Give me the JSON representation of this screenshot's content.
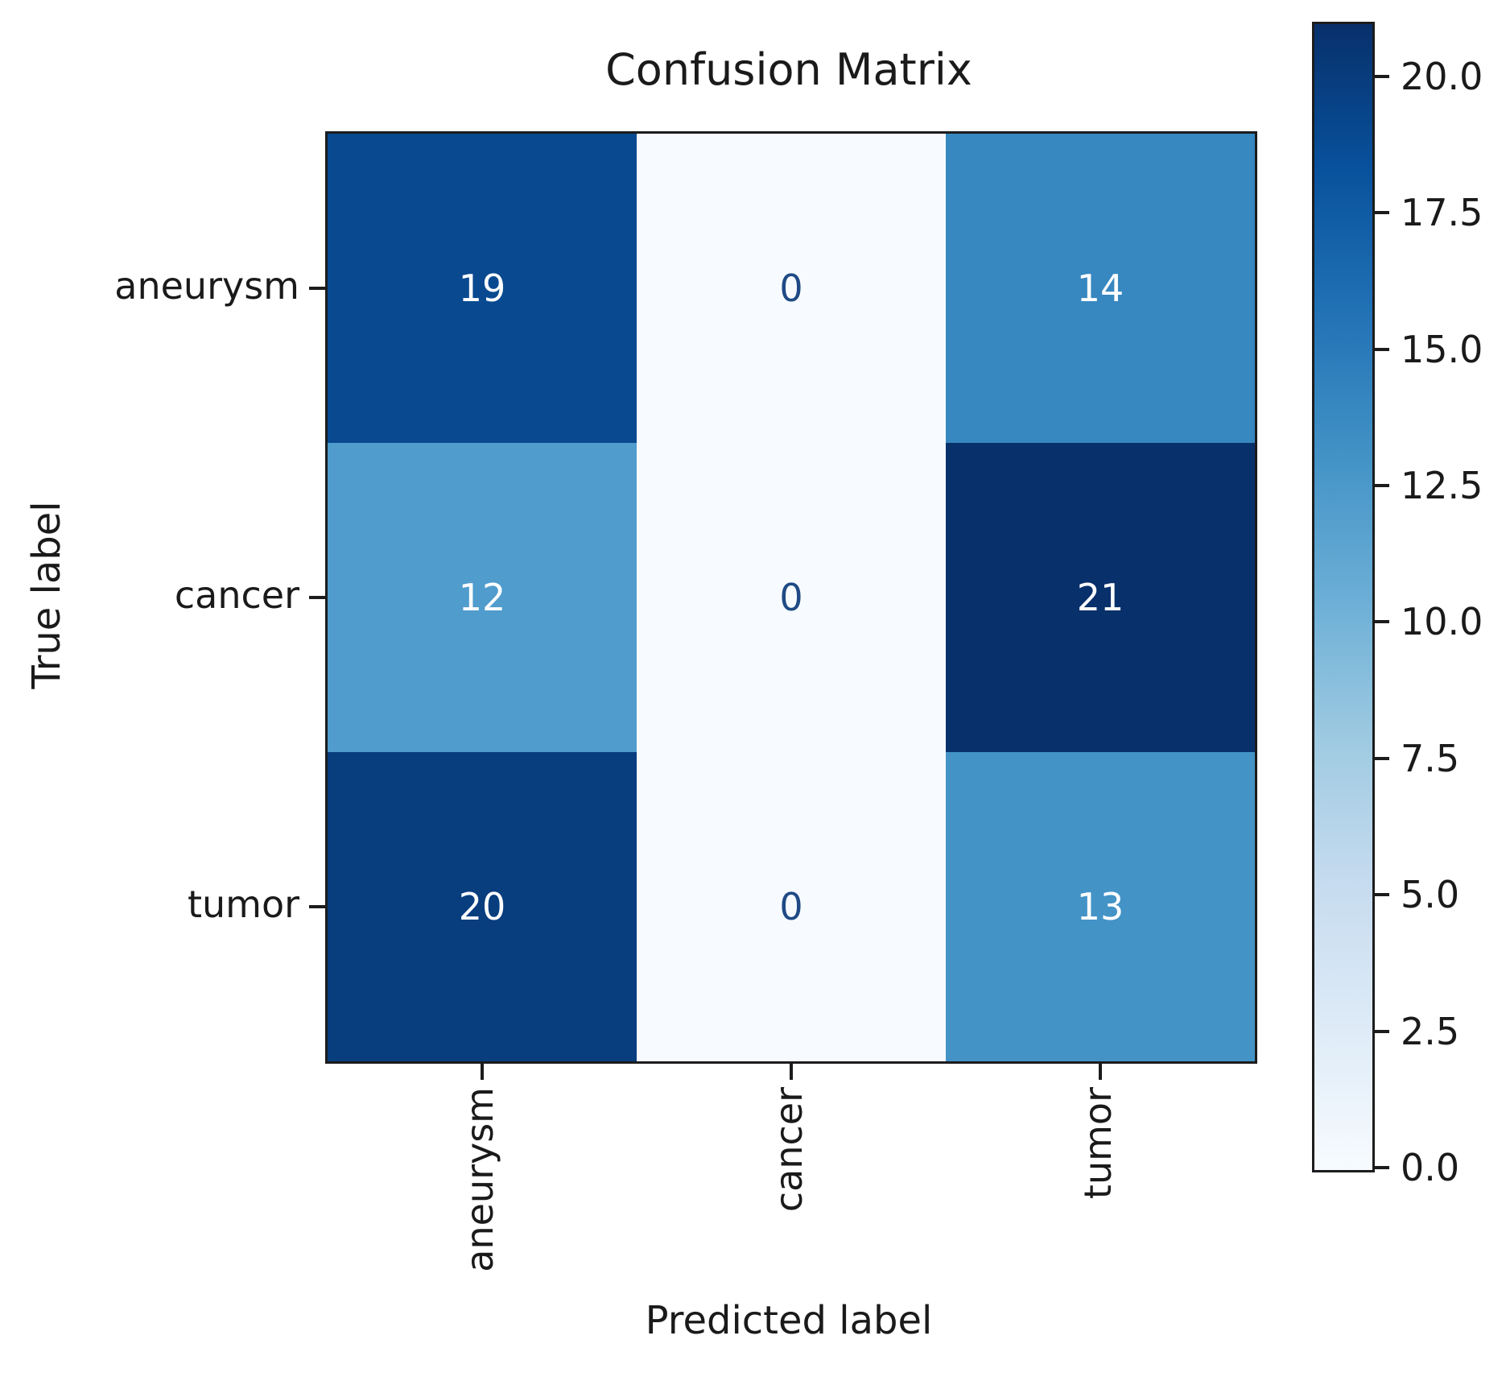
{
  "figure": {
    "title": "Confusion Matrix",
    "xlabel": "Predicted label",
    "ylabel": "True label"
  },
  "chart_data": {
    "type": "heatmap",
    "title": "Confusion Matrix",
    "xlabel": "Predicted label",
    "ylabel": "True label",
    "x_categories": [
      "aneurysm",
      "cancer",
      "tumor"
    ],
    "y_categories": [
      "aneurysm",
      "cancer",
      "tumor"
    ],
    "matrix": [
      [
        19,
        0,
        14
      ],
      [
        12,
        0,
        21
      ],
      [
        20,
        0,
        13
      ]
    ],
    "colormap": "Blues",
    "vmin": 0,
    "vmax": 21,
    "grid": false,
    "colorbar_position": "right",
    "colorbar_tick_labels": [
      "20.0",
      "17.5",
      "15.0",
      "12.5",
      "10.0",
      "7.5",
      "5.0",
      "2.5",
      "0.0"
    ],
    "colorbar_gradient_top_to_bottom": [
      "#08306b",
      "#08519c",
      "#2171b5",
      "#4292c6",
      "#6baed6",
      "#9ecae1",
      "#c6dbef",
      "#deebf7",
      "#f7fbff"
    ],
    "cell_colors": [
      [
        "#084990",
        "#f7fbff",
        "#3787c0"
      ],
      [
        "#4f9ccd",
        "#f7fbff",
        "#08306b"
      ],
      [
        "#083d7e",
        "#f7fbff",
        "#4493c7"
      ]
    ],
    "cell_text_colors": [
      [
        "#ffffff",
        "#1f4a85",
        "#ffffff"
      ],
      [
        "#ffffff",
        "#1f4a85",
        "#ffffff"
      ],
      [
        "#ffffff",
        "#1f4a85",
        "#ffffff"
      ]
    ],
    "spine_color": "#1c1c1c"
  }
}
